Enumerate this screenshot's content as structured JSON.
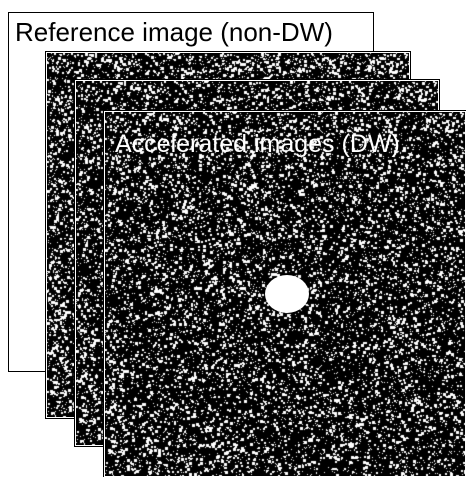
{
  "reference_label": "Reference image (non-DW)",
  "accelerated_label": "Accelerated images (DW)",
  "colors": {
    "background": "#ffffff",
    "noise_panel": "#000000",
    "noise_speckle": "#ffffff",
    "reference_frame_border": "#000000"
  },
  "icons": {
    "center_blob": "white-circle"
  }
}
